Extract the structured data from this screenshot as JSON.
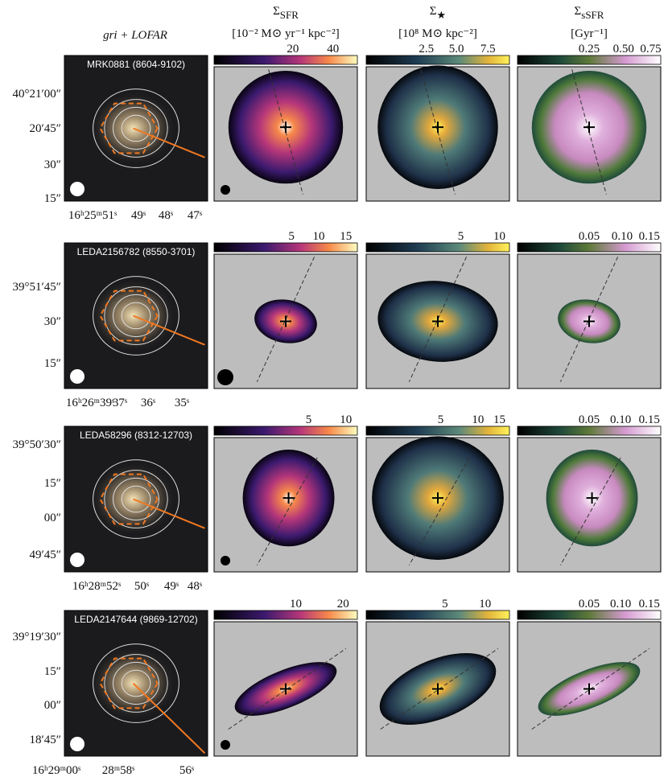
{
  "header": {
    "columns": [
      {
        "title": "gri + LOFAR"
      },
      {
        "symbol": "Σ",
        "sub": "SFR",
        "unit": "[10⁻² M⊙ yr⁻¹ kpc⁻²]"
      },
      {
        "symbol": "Σ",
        "sub": "★",
        "unit": "[10⁸ M⊙ kpc⁻²]"
      },
      {
        "symbol": "Σ",
        "sub": "sSFR",
        "unit": "[Gyr⁻¹]"
      }
    ]
  },
  "rows": [
    {
      "label": "MRK0881 (8604-9102)",
      "dec_ticks": [
        "40°21′00″",
        "20′45″",
        "30″",
        "15″"
      ],
      "ra_ticks": [
        "16ʰ25ᵐ51ˢ",
        "49ˢ",
        "48ˢ",
        "47ˢ"
      ],
      "colorbar_ticks": [
        [
          "20",
          "40"
        ],
        [
          "2.5",
          "5.0",
          "7.5"
        ],
        [
          "0.25",
          "0.50",
          "0.75"
        ]
      ]
    },
    {
      "label": "LEDA2156782 (8550-3701)",
      "dec_ticks": [
        "39°51′45″",
        "30″",
        "15″"
      ],
      "ra_ticks": [
        "16ʰ26ᵐ39ˢ",
        "37ˢ",
        "36ˢ",
        "35ˢ"
      ],
      "colorbar_ticks": [
        [
          "5",
          "10",
          "15"
        ],
        [
          "5",
          "10"
        ],
        [
          "0.05",
          "0.10",
          "0.15"
        ]
      ]
    },
    {
      "label": "LEDA58296 (8312-12703)",
      "dec_ticks": [
        "39°50′30″",
        "15″",
        "00″",
        "49′45″"
      ],
      "ra_ticks": [
        "16ʰ28ᵐ52ˢ",
        "50ˢ",
        "49ˢ",
        "48ˢ"
      ],
      "colorbar_ticks": [
        [
          "5",
          "10"
        ],
        [
          "5",
          "10",
          "15"
        ],
        [
          "0.05",
          "0.10",
          "0.15"
        ]
      ]
    },
    {
      "label": "LEDA2147644 (9869-12702)",
      "dec_ticks": [
        "39°19′30″",
        "15″",
        "00″",
        "18′45″"
      ],
      "ra_ticks": [
        "16ʰ29ᵐ00ˢ",
        "28ᵐ58ˢ",
        "56ˢ"
      ],
      "colorbar_ticks": [
        [
          "10",
          "20"
        ],
        [
          "5",
          "10"
        ],
        [
          "0.05",
          "0.10",
          "0.15"
        ]
      ]
    }
  ]
}
